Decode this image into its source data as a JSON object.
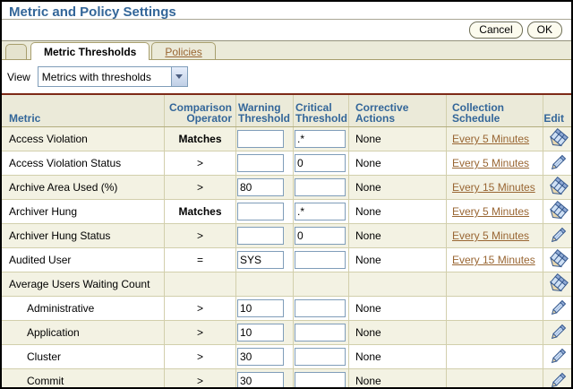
{
  "header": {
    "title": "Metric and Policy Settings"
  },
  "actions": {
    "cancel_label": "Cancel",
    "ok_label": "OK"
  },
  "tabs": [
    {
      "label": "Metric Thresholds",
      "active": true
    },
    {
      "label": "Policies",
      "active": false
    }
  ],
  "view": {
    "label": "View",
    "selected_option": "Metrics with thresholds"
  },
  "icons": {
    "dropdown_arrow": "chevron-down-icon",
    "edit_single": "pencil-icon",
    "edit_multi": "multi-pencil-icon"
  },
  "colors": {
    "title_blue": "#336699",
    "header_text_blue": "#336699",
    "link_brown": "#996633",
    "band_beige": "#ebead9",
    "row_beige": "#f3f2e3",
    "grid_tan": "#d2cfac",
    "rule_maroon": "#7e2a18",
    "input_border_blue": "#7f9db9"
  },
  "table": {
    "columns": [
      "Metric",
      "Comparison Operator",
      "Warning Threshold",
      "Critical Threshold",
      "Corrective Actions",
      "Collection Schedule",
      "Edit"
    ],
    "rows": [
      {
        "metric": "Access Violation",
        "indent": false,
        "operator": "Matches",
        "operator_bold": true,
        "warning": "",
        "critical": ".*",
        "corrective": "None",
        "schedule": "Every 5 Minutes",
        "edit_icon": "multi"
      },
      {
        "metric": "Access Violation Status",
        "indent": false,
        "operator": ">",
        "operator_bold": false,
        "warning": "",
        "critical": "0",
        "corrective": "None",
        "schedule": "Every 5 Minutes",
        "edit_icon": "single"
      },
      {
        "metric": "Archive Area Used (%)",
        "indent": false,
        "operator": ">",
        "operator_bold": false,
        "warning": "80",
        "critical": "",
        "corrective": "None",
        "schedule": "Every 15 Minutes",
        "edit_icon": "multi"
      },
      {
        "metric": "Archiver Hung",
        "indent": false,
        "operator": "Matches",
        "operator_bold": true,
        "warning": "",
        "critical": ".*",
        "corrective": "None",
        "schedule": "Every 5 Minutes",
        "edit_icon": "multi"
      },
      {
        "metric": "Archiver Hung Status",
        "indent": false,
        "operator": ">",
        "operator_bold": false,
        "warning": "",
        "critical": "0",
        "corrective": "None",
        "schedule": "Every 5 Minutes",
        "edit_icon": "single"
      },
      {
        "metric": "Audited User",
        "indent": false,
        "operator": "=",
        "operator_bold": false,
        "warning": "SYS",
        "critical": "",
        "corrective": "None",
        "schedule": "Every 15 Minutes",
        "edit_icon": "multi"
      },
      {
        "metric": "Average Users Waiting Count",
        "indent": false,
        "operator": null,
        "operator_bold": false,
        "warning": null,
        "critical": null,
        "corrective": "",
        "schedule": "",
        "edit_icon": "multi"
      },
      {
        "metric": "Administrative",
        "indent": true,
        "operator": ">",
        "operator_bold": false,
        "warning": "10",
        "critical": "",
        "corrective": "None",
        "schedule": "",
        "edit_icon": "single"
      },
      {
        "metric": "Application",
        "indent": true,
        "operator": ">",
        "operator_bold": false,
        "warning": "10",
        "critical": "",
        "corrective": "None",
        "schedule": "",
        "edit_icon": "single"
      },
      {
        "metric": "Cluster",
        "indent": true,
        "operator": ">",
        "operator_bold": false,
        "warning": "30",
        "critical": "",
        "corrective": "None",
        "schedule": "",
        "edit_icon": "single"
      },
      {
        "metric": "Commit",
        "indent": true,
        "operator": ">",
        "operator_bold": false,
        "warning": "30",
        "critical": "",
        "corrective": "None",
        "schedule": "",
        "edit_icon": "single"
      }
    ]
  }
}
